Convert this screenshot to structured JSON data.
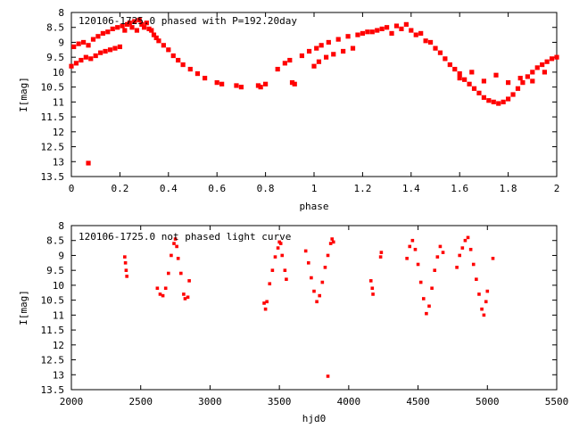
{
  "chart_data": [
    {
      "type": "scatter",
      "title": "120106-1725.0 phased with P=192.20day",
      "xlabel": "phase",
      "ylabel": "I[mag]",
      "xlim": [
        0,
        2
      ],
      "ylim": [
        13.5,
        8
      ],
      "y_inverted": true,
      "grid": false,
      "legend": "none",
      "marker_color": "#ff0000",
      "x_ticks": [
        "0",
        "0.2",
        "0.4",
        "0.6",
        "0.8",
        "1",
        "1.2",
        "1.4",
        "1.6",
        "1.8",
        "2"
      ],
      "y_ticks": [
        "8",
        "8.5",
        "9",
        "9.5",
        "10",
        "10.5",
        "11",
        "11.5",
        "12",
        "12.5",
        "13",
        "13.5"
      ],
      "series": [
        {
          "points": [
            [
              0.0,
              9.8
            ],
            [
              0.01,
              9.15
            ],
            [
              0.02,
              9.7
            ],
            [
              0.03,
              9.05
            ],
            [
              0.04,
              9.6
            ],
            [
              0.05,
              9.0
            ],
            [
              0.06,
              9.5
            ],
            [
              0.07,
              9.1
            ],
            [
              0.08,
              9.55
            ],
            [
              0.09,
              8.9
            ],
            [
              0.1,
              9.45
            ],
            [
              0.11,
              8.8
            ],
            [
              0.12,
              9.35
            ],
            [
              0.13,
              8.7
            ],
            [
              0.14,
              9.3
            ],
            [
              0.15,
              8.65
            ],
            [
              0.16,
              9.25
            ],
            [
              0.17,
              8.55
            ],
            [
              0.18,
              9.2
            ],
            [
              0.19,
              8.5
            ],
            [
              0.2,
              9.15
            ],
            [
              0.21,
              8.45
            ],
            [
              0.22,
              8.6
            ],
            [
              0.23,
              8.4
            ],
            [
              0.24,
              8.35
            ],
            [
              0.25,
              8.5
            ],
            [
              0.26,
              8.3
            ],
            [
              0.27,
              8.6
            ],
            [
              0.28,
              8.25
            ],
            [
              0.29,
              8.4
            ],
            [
              0.3,
              8.5
            ],
            [
              0.31,
              8.35
            ],
            [
              0.32,
              8.55
            ],
            [
              0.33,
              8.6
            ],
            [
              0.34,
              8.75
            ],
            [
              0.35,
              8.85
            ],
            [
              0.36,
              8.95
            ],
            [
              0.38,
              9.1
            ],
            [
              0.4,
              9.25
            ],
            [
              0.42,
              9.45
            ],
            [
              0.44,
              9.6
            ],
            [
              0.46,
              9.75
            ],
            [
              0.49,
              9.9
            ],
            [
              0.52,
              10.05
            ],
            [
              0.55,
              10.2
            ],
            [
              0.6,
              10.35
            ],
            [
              0.62,
              10.4
            ],
            [
              0.68,
              10.45
            ],
            [
              0.7,
              10.5
            ],
            [
              0.77,
              10.45
            ],
            [
              0.78,
              10.5
            ],
            [
              0.8,
              10.4
            ],
            [
              0.85,
              9.9
            ],
            [
              0.88,
              9.7
            ],
            [
              0.9,
              9.6
            ],
            [
              0.91,
              10.35
            ],
            [
              0.92,
              10.4
            ],
            [
              0.95,
              9.45
            ],
            [
              0.98,
              9.3
            ],
            [
              1.0,
              9.8
            ],
            [
              1.01,
              9.2
            ],
            [
              1.02,
              9.65
            ],
            [
              1.03,
              9.1
            ],
            [
              1.05,
              9.5
            ],
            [
              1.06,
              9.0
            ],
            [
              1.08,
              9.4
            ],
            [
              1.1,
              8.9
            ],
            [
              1.12,
              9.3
            ],
            [
              1.14,
              8.8
            ],
            [
              1.16,
              9.2
            ],
            [
              1.18,
              8.75
            ],
            [
              1.2,
              8.7
            ],
            [
              1.22,
              8.65
            ],
            [
              1.24,
              8.65
            ],
            [
              1.26,
              8.6
            ],
            [
              1.28,
              8.55
            ],
            [
              1.3,
              8.5
            ],
            [
              1.32,
              8.7
            ],
            [
              1.34,
              8.45
            ],
            [
              1.36,
              8.55
            ],
            [
              1.38,
              8.4
            ],
            [
              1.4,
              8.6
            ],
            [
              1.42,
              8.75
            ],
            [
              1.44,
              8.7
            ],
            [
              1.46,
              8.95
            ],
            [
              1.48,
              9.0
            ],
            [
              1.5,
              9.2
            ],
            [
              1.52,
              9.35
            ],
            [
              1.54,
              9.55
            ],
            [
              1.56,
              9.75
            ],
            [
              1.58,
              9.9
            ],
            [
              1.6,
              10.05
            ],
            [
              1.62,
              10.25
            ],
            [
              1.64,
              10.4
            ],
            [
              1.66,
              10.55
            ],
            [
              1.68,
              10.7
            ],
            [
              1.7,
              10.85
            ],
            [
              1.72,
              10.95
            ],
            [
              1.74,
              11.0
            ],
            [
              1.76,
              11.05
            ],
            [
              1.78,
              11.0
            ],
            [
              1.8,
              10.9
            ],
            [
              1.82,
              10.75
            ],
            [
              1.84,
              10.55
            ],
            [
              1.86,
              10.35
            ],
            [
              1.88,
              10.15
            ],
            [
              1.9,
              10.0
            ],
            [
              1.92,
              9.85
            ],
            [
              1.94,
              9.75
            ],
            [
              1.96,
              9.65
            ],
            [
              1.98,
              9.55
            ],
            [
              2.0,
              9.5
            ],
            [
              1.6,
              10.2
            ],
            [
              1.7,
              10.3
            ],
            [
              1.8,
              10.35
            ],
            [
              1.9,
              10.3
            ],
            [
              1.75,
              10.1
            ],
            [
              1.85,
              10.2
            ],
            [
              1.95,
              10.0
            ],
            [
              1.65,
              10.0
            ],
            [
              0.07,
              13.05
            ]
          ]
        }
      ]
    },
    {
      "type": "scatter",
      "title": "120106-1725.0 not phased light curve",
      "xlabel": "hjd0",
      "ylabel": "I[mag]",
      "xlim": [
        2000,
        5500
      ],
      "ylim": [
        13.5,
        8
      ],
      "y_inverted": true,
      "grid": false,
      "legend": "none",
      "marker_color": "#ff0000",
      "x_ticks": [
        "2000",
        "2500",
        "3000",
        "3500",
        "4000",
        "4500",
        "5000",
        "5500"
      ],
      "y_ticks": [
        "8",
        "8.5",
        "9",
        "9.5",
        "10",
        "10.5",
        "11",
        "11.5",
        "12",
        "12.5",
        "13",
        "13.5"
      ],
      "series": [
        {
          "points": [
            [
              2385,
              9.05
            ],
            [
              2390,
              9.25
            ],
            [
              2395,
              9.5
            ],
            [
              2400,
              9.7
            ],
            [
              2620,
              10.1
            ],
            [
              2640,
              10.3
            ],
            [
              2660,
              10.35
            ],
            [
              2680,
              10.1
            ],
            [
              2700,
              9.6
            ],
            [
              2720,
              9.0
            ],
            [
              2740,
              8.6
            ],
            [
              2750,
              8.45
            ],
            [
              2760,
              8.7
            ],
            [
              2770,
              9.1
            ],
            [
              2790,
              9.6
            ],
            [
              2810,
              10.3
            ],
            [
              2820,
              10.45
            ],
            [
              2840,
              10.4
            ],
            [
              2850,
              9.85
            ],
            [
              3390,
              10.6
            ],
            [
              3400,
              10.8
            ],
            [
              3410,
              10.55
            ],
            [
              3430,
              9.95
            ],
            [
              3450,
              9.5
            ],
            [
              3470,
              9.05
            ],
            [
              3490,
              8.75
            ],
            [
              3500,
              8.55
            ],
            [
              3510,
              8.6
            ],
            [
              3520,
              9.0
            ],
            [
              3540,
              9.5
            ],
            [
              3550,
              9.8
            ],
            [
              3690,
              8.85
            ],
            [
              3710,
              9.25
            ],
            [
              3730,
              9.75
            ],
            [
              3750,
              10.2
            ],
            [
              3770,
              10.55
            ],
            [
              3790,
              10.35
            ],
            [
              3810,
              9.9
            ],
            [
              3830,
              9.4
            ],
            [
              3850,
              9.0
            ],
            [
              3870,
              8.6
            ],
            [
              3880,
              8.45
            ],
            [
              3890,
              8.55
            ],
            [
              3850,
              13.05
            ],
            [
              4160,
              9.85
            ],
            [
              4170,
              10.1
            ],
            [
              4175,
              10.3
            ],
            [
              4230,
              9.05
            ],
            [
              4235,
              8.9
            ],
            [
              4420,
              9.1
            ],
            [
              4440,
              8.7
            ],
            [
              4460,
              8.5
            ],
            [
              4480,
              8.8
            ],
            [
              4500,
              9.3
            ],
            [
              4520,
              9.9
            ],
            [
              4540,
              10.45
            ],
            [
              4560,
              10.95
            ],
            [
              4580,
              10.7
            ],
            [
              4600,
              10.1
            ],
            [
              4620,
              9.5
            ],
            [
              4640,
              9.05
            ],
            [
              4660,
              8.7
            ],
            [
              4680,
              8.9
            ],
            [
              4780,
              9.4
            ],
            [
              4800,
              9.0
            ],
            [
              4820,
              8.75
            ],
            [
              4840,
              8.5
            ],
            [
              4860,
              8.4
            ],
            [
              4880,
              8.8
            ],
            [
              4900,
              9.3
            ],
            [
              4920,
              9.8
            ],
            [
              4940,
              10.3
            ],
            [
              4960,
              10.8
            ],
            [
              4975,
              11.0
            ],
            [
              4990,
              10.55
            ],
            [
              5000,
              10.2
            ],
            [
              5040,
              9.1
            ]
          ]
        }
      ]
    }
  ]
}
